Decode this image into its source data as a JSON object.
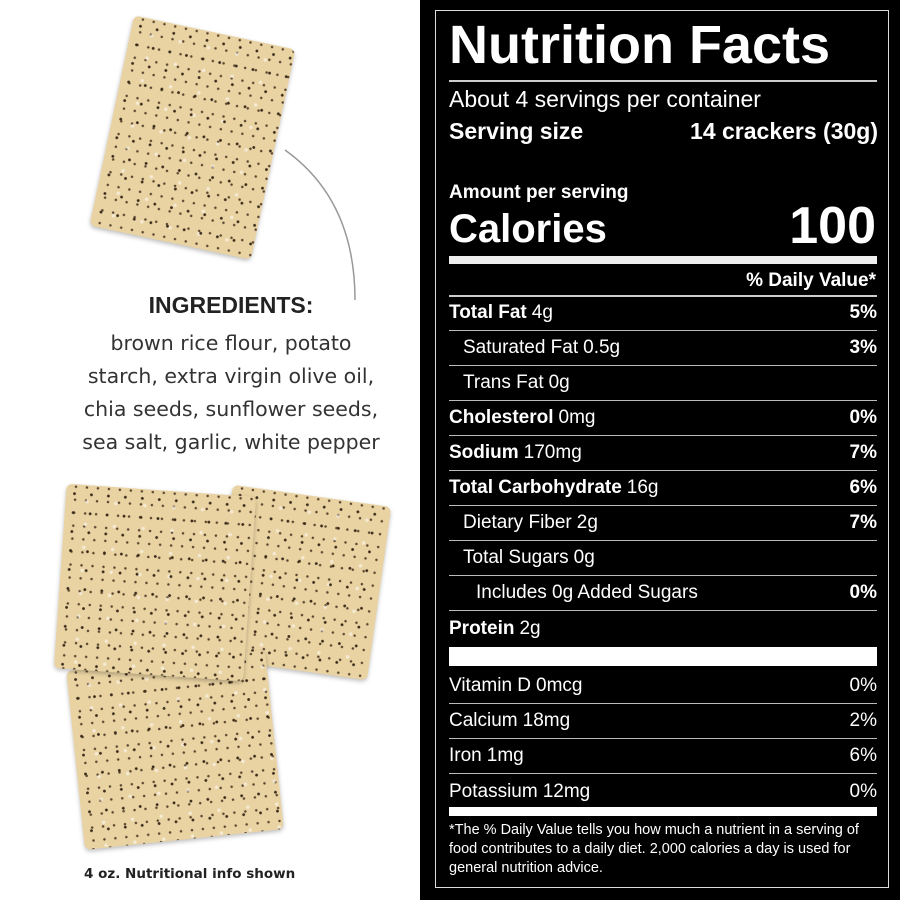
{
  "ingredients": {
    "title": "INGREDIENTS:",
    "lines": [
      "brown rice flour, potato",
      "starch, extra virgin olive oil,",
      "chia seeds, sunflower seeds,",
      "sea salt, garlic, white pepper"
    ]
  },
  "footnote_left": "4 oz. Nutritional info shown",
  "label": {
    "title": "Nutrition Facts",
    "servings": "About 4 servings per container",
    "serving_size_label": "Serving size",
    "serving_size_value": "14 crackers (30g)",
    "amount_per_serving": "Amount per serving",
    "calories_label": "Calories",
    "calories_value": "100",
    "dv_header": "% Daily Value*",
    "nutrients": [
      {
        "name": "Total Fat",
        "amount": "4g",
        "dv": "5%"
      },
      {
        "name": "Saturated Fat",
        "amount": "0.5g",
        "dv": "3%"
      },
      {
        "name": "Trans Fat",
        "amount": "0g",
        "dv": ""
      },
      {
        "name": "Cholesterol",
        "amount": "0mg",
        "dv": "0%"
      },
      {
        "name": "Sodium",
        "amount": "170mg",
        "dv": "7%"
      },
      {
        "name": "Total Carbohydrate",
        "amount": "16g",
        "dv": "6%"
      },
      {
        "name": "Dietary Fiber",
        "amount": "2g",
        "dv": "7%"
      },
      {
        "name": "Total Sugars",
        "amount": "0g",
        "dv": ""
      },
      {
        "name": "Includes 0g Added Sugars",
        "amount": "",
        "dv": "0%"
      },
      {
        "name": "Protein",
        "amount": "2g",
        "dv": ""
      }
    ],
    "vitamins": [
      {
        "name": "Vitamin D",
        "amount": "0mcg",
        "dv": "0%"
      },
      {
        "name": "Calcium",
        "amount": "18mg",
        "dv": "2%"
      },
      {
        "name": "Iron",
        "amount": "1mg",
        "dv": "6%"
      },
      {
        "name": "Potassium",
        "amount": "12mg",
        "dv": "0%"
      }
    ],
    "footnote": "*The % Daily Value tells you how much a nutrient in a serving of food contributes to a daily diet. 2,000 calories a day is used for general nutrition advice."
  }
}
